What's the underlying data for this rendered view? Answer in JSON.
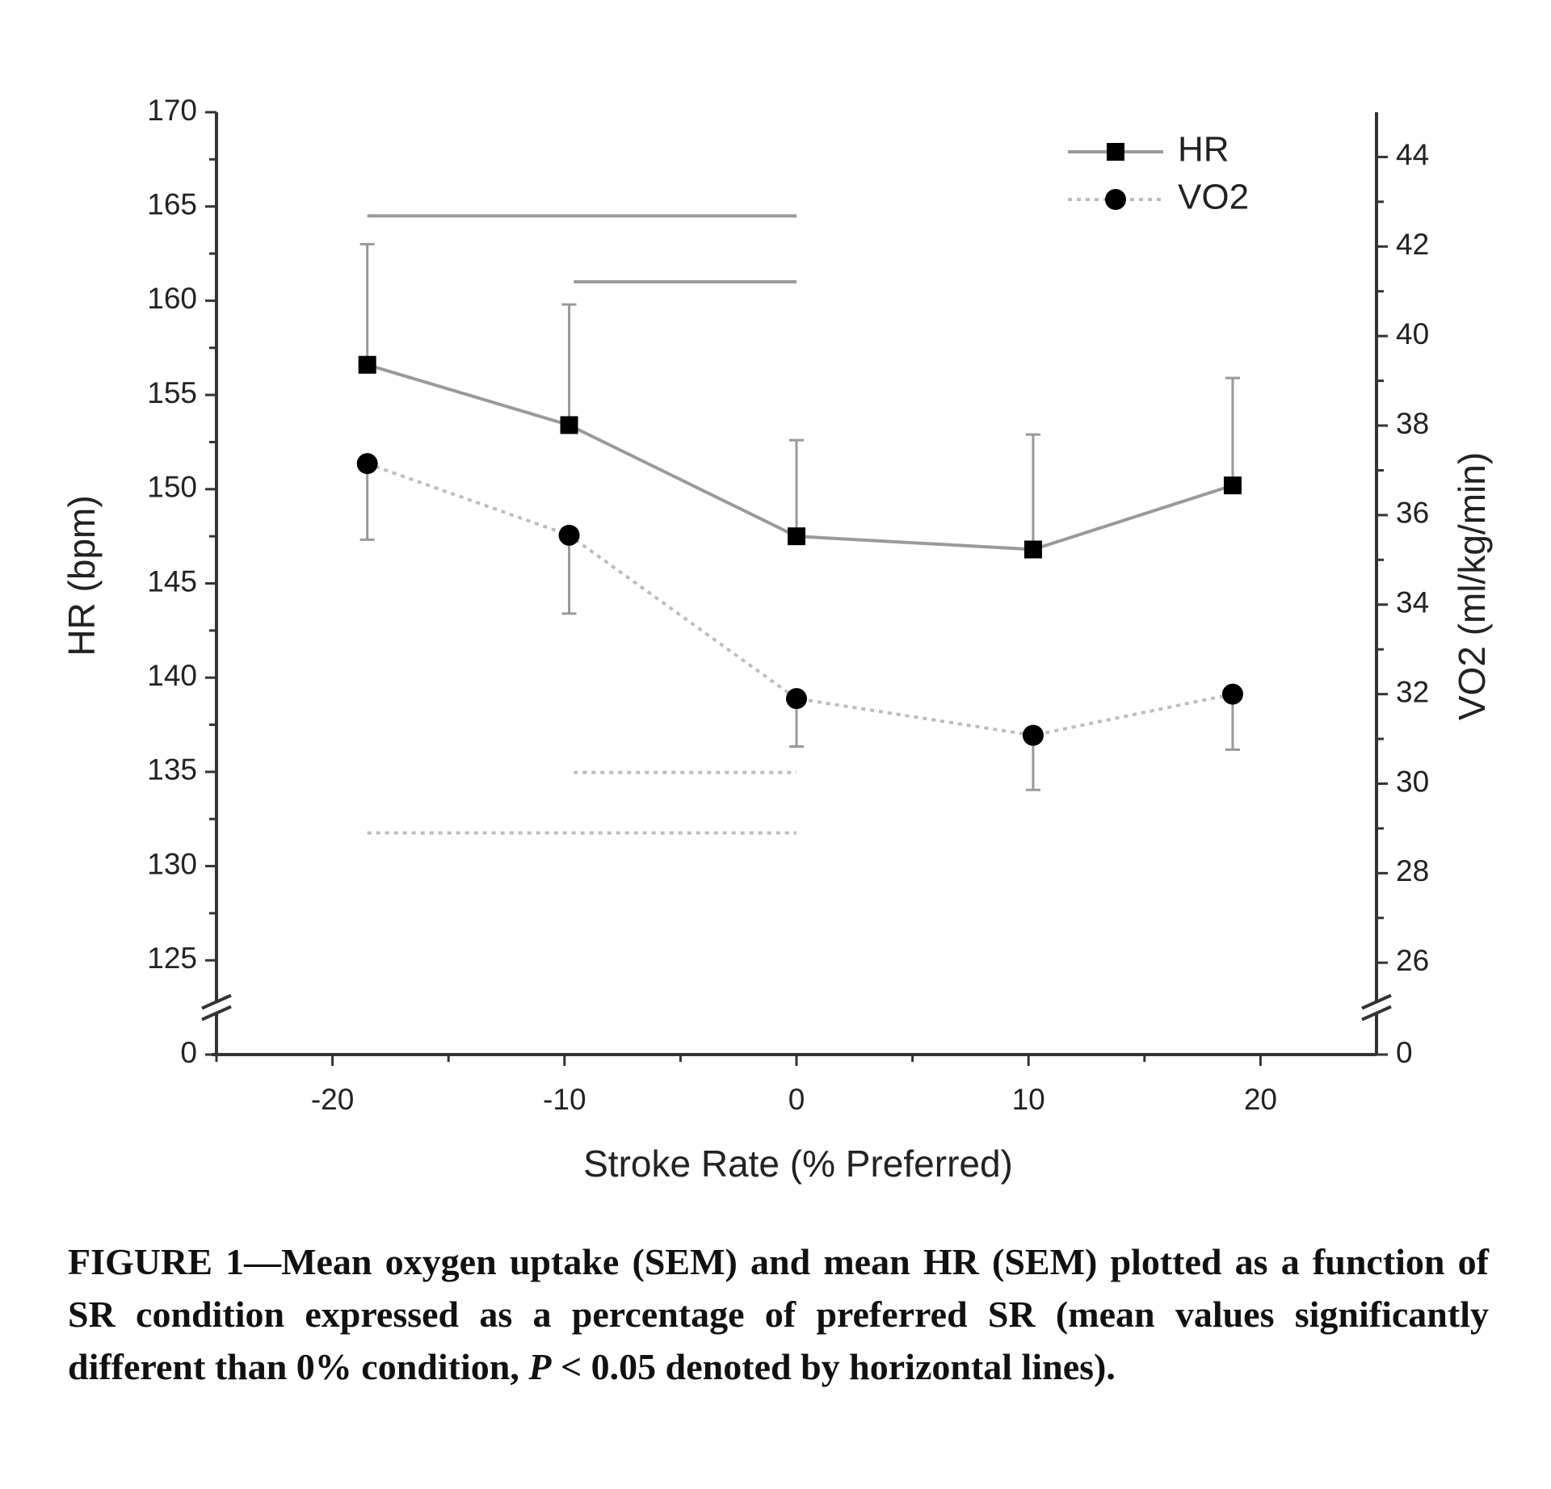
{
  "chart_data": {
    "type": "line",
    "x_label": "Stroke Rate (% Preferred)",
    "y_label": "HR (bpm)",
    "y2_label": "VO2 (ml/kg/min)",
    "x": [
      -18.5,
      -9.8,
      0,
      10.2,
      18.8
    ],
    "xlim": [
      -25,
      25
    ],
    "xticks": [
      -20,
      -10,
      0,
      10,
      20
    ],
    "ylim": [
      0,
      170
    ],
    "yticks": [
      0,
      125,
      130,
      135,
      140,
      145,
      150,
      155,
      160,
      165,
      170
    ],
    "y2lim": [
      0,
      45
    ],
    "y2ticks": [
      0,
      26,
      28,
      30,
      32,
      34,
      36,
      38,
      40,
      42,
      44
    ],
    "axis_break": true,
    "legend": "upper right",
    "series": [
      {
        "name": "HR",
        "color": "#9a9a9a",
        "marker": "square",
        "dash": "solid",
        "values": [
          156.6,
          153.4,
          147.5,
          146.8,
          150.2
        ],
        "errors": [
          6.4,
          6.4,
          5.1,
          6.1,
          5.7
        ],
        "error_direction": "up"
      },
      {
        "name": "VO2",
        "color": "#bdbdbd",
        "marker": "circle",
        "dash": "dotted",
        "axis": "y2",
        "values": [
          37.15,
          35.55,
          31.9,
          31.08,
          32.0
        ],
        "errors": [
          1.7,
          1.75,
          1.07,
          1.22,
          1.24
        ],
        "error_direction": "down"
      }
    ],
    "significance_lines": [
      {
        "series": 0,
        "x": [
          -18.5,
          0
        ],
        "y": 164.5
      },
      {
        "series": 0,
        "x": [
          -9.6,
          0
        ],
        "y": 161
      },
      {
        "series": 1,
        "x": [
          -9.6,
          0
        ],
        "y": 30.25
      },
      {
        "series": 1,
        "x": [
          -18.5,
          0
        ],
        "y": 28.9
      }
    ]
  },
  "caption": [
    "FIGURE 1—Mean oxygen uptake (SEM) and mean HR (SEM) plotted as a function of SR condition expressed as a percentage of preferred SR (mean values significantly different than 0% condition, ",
    "P",
    " < 0.05 denoted by horizontal lines)."
  ]
}
